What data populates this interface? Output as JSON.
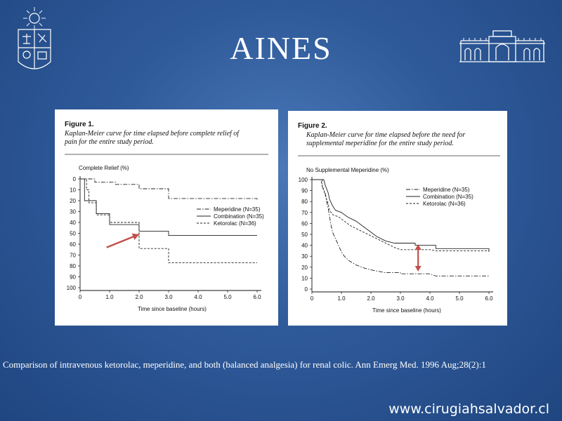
{
  "slide": {
    "title": "AINES",
    "caption": "Comparison of intravenous ketorolac, meperidine, and both (balanced analgesia) for renal colic. Ann Emerg Med. 1996 Aug;28(2):1",
    "website": "www.cirugiahsalvador.cl"
  },
  "colors": {
    "background": "#2f5a9a",
    "arrow": "#c0504d",
    "line": "#222222"
  },
  "chart_data": [
    {
      "type": "line",
      "figure_label": "Figure 1.",
      "title_lines": [
        "Kaplan-Meier curve for time elapsed before complete relief of",
        "pain for the entire study period."
      ],
      "ylabel": "Complete Relief (%)",
      "xlabel": "Time since baseline (hours)",
      "y_inverted": true,
      "ylim": [
        0,
        100
      ],
      "xlim": [
        0,
        6
      ],
      "yticks": [
        0,
        10,
        20,
        30,
        40,
        50,
        60,
        70,
        80,
        90,
        100
      ],
      "xticks": [
        0,
        1,
        2,
        3,
        4,
        5,
        6
      ],
      "xtick_labels": [
        "0",
        "1.0",
        "2.0",
        "3.0",
        "4.0",
        "5.0",
        "6.0"
      ],
      "legend_position": "right",
      "series": [
        {
          "name": "Meperidine (N=35)",
          "style": "dashdot",
          "points": [
            [
              0,
              0
            ],
            [
              0.5,
              0
            ],
            [
              0.5,
              3
            ],
            [
              1.2,
              3
            ],
            [
              1.2,
              5
            ],
            [
              2.0,
              5
            ],
            [
              2.0,
              9
            ],
            [
              3.0,
              9
            ],
            [
              3.0,
              18
            ],
            [
              6.0,
              18
            ],
            [
              6.0,
              19
            ]
          ]
        },
        {
          "name": "Combination (N=35)",
          "style": "solid",
          "points": [
            [
              0,
              0
            ],
            [
              0.15,
              0
            ],
            [
              0.15,
              20
            ],
            [
              0.55,
              20
            ],
            [
              0.55,
              32
            ],
            [
              1.0,
              32
            ],
            [
              1.0,
              42
            ],
            [
              2.0,
              42
            ],
            [
              2.0,
              48
            ],
            [
              3.0,
              48
            ],
            [
              3.0,
              52
            ],
            [
              6.0,
              52
            ]
          ]
        },
        {
          "name": "Ketorolac (N=36)",
          "style": "dashed",
          "points": [
            [
              0,
              0
            ],
            [
              0.22,
              0
            ],
            [
              0.22,
              10
            ],
            [
              0.3,
              10
            ],
            [
              0.3,
              22
            ],
            [
              0.55,
              22
            ],
            [
              0.55,
              33
            ],
            [
              1.0,
              33
            ],
            [
              1.0,
              40
            ],
            [
              2.0,
              40
            ],
            [
              2.0,
              64
            ],
            [
              3.0,
              64
            ],
            [
              3.0,
              77
            ],
            [
              6.0,
              77
            ]
          ]
        }
      ],
      "annotation": {
        "type": "arrow",
        "from": [
          0.9,
          63
        ],
        "to": [
          2.0,
          51
        ]
      }
    },
    {
      "type": "line",
      "figure_label": "Figure 2.",
      "title_lines": [
        "Kaplan-Meier curve for time elapsed before the need for",
        "supplemental meperidine for the entire study period."
      ],
      "ylabel": "No Supplemental Meperidine (%)",
      "xlabel": "Time since baseline (hours)",
      "y_inverted": false,
      "ylim": [
        0,
        100
      ],
      "xlim": [
        0,
        6
      ],
      "yticks": [
        0,
        10,
        20,
        30,
        40,
        50,
        60,
        70,
        80,
        90,
        100
      ],
      "xticks": [
        0,
        1,
        2,
        3,
        4,
        5,
        6
      ],
      "xtick_labels": [
        "0",
        "1.0",
        "2.0",
        "3.0",
        "4.0",
        "5.0",
        "6.0"
      ],
      "legend_position": "right",
      "series": [
        {
          "name": "Meperidine (N=35)",
          "style": "dashdot",
          "points": [
            [
              0,
              100
            ],
            [
              0.35,
              100
            ],
            [
              0.35,
              94
            ],
            [
              0.45,
              88
            ],
            [
              0.5,
              80
            ],
            [
              0.55,
              74
            ],
            [
              0.6,
              66
            ],
            [
              0.65,
              58
            ],
            [
              0.7,
              52
            ],
            [
              0.8,
              46
            ],
            [
              0.9,
              40
            ],
            [
              1.0,
              34
            ],
            [
              1.1,
              30
            ],
            [
              1.25,
              26
            ],
            [
              1.5,
              22
            ],
            [
              1.8,
              19
            ],
            [
              2.1,
              17
            ],
            [
              2.5,
              15
            ],
            [
              3.0,
              15
            ],
            [
              3.0,
              14
            ],
            [
              4.0,
              14
            ],
            [
              4.2,
              12
            ],
            [
              6.0,
              12
            ]
          ]
        },
        {
          "name": "Combination (N=35)",
          "style": "solid",
          "points": [
            [
              0,
              100
            ],
            [
              0.4,
              100
            ],
            [
              0.45,
              95
            ],
            [
              0.55,
              88
            ],
            [
              0.6,
              82
            ],
            [
              0.7,
              76
            ],
            [
              0.8,
              72
            ],
            [
              1.0,
              70
            ],
            [
              1.2,
              66
            ],
            [
              1.5,
              62
            ],
            [
              1.8,
              56
            ],
            [
              2.0,
              52
            ],
            [
              2.2,
              48
            ],
            [
              2.5,
              44
            ],
            [
              2.8,
              42
            ],
            [
              3.5,
              42
            ],
            [
              3.5,
              40
            ],
            [
              4.2,
              40
            ],
            [
              4.2,
              37
            ],
            [
              6.0,
              37
            ],
            [
              6.0,
              34
            ]
          ]
        },
        {
          "name": "Ketorolac (N=36)",
          "style": "dashed",
          "points": [
            [
              0,
              100
            ],
            [
              0.3,
              100
            ],
            [
              0.35,
              94
            ],
            [
              0.45,
              86
            ],
            [
              0.55,
              78
            ],
            [
              0.6,
              72
            ],
            [
              0.7,
              68
            ],
            [
              0.9,
              66
            ],
            [
              1.1,
              62
            ],
            [
              1.3,
              58
            ],
            [
              1.6,
              54
            ],
            [
              1.9,
              50
            ],
            [
              2.2,
              46
            ],
            [
              2.5,
              42
            ],
            [
              2.8,
              38
            ],
            [
              3.0,
              36
            ],
            [
              4.0,
              36
            ],
            [
              4.2,
              35
            ],
            [
              6.0,
              35
            ]
          ]
        }
      ],
      "annotation": {
        "type": "double-arrow",
        "x": 3.6,
        "from": 16,
        "to": 41
      }
    }
  ]
}
